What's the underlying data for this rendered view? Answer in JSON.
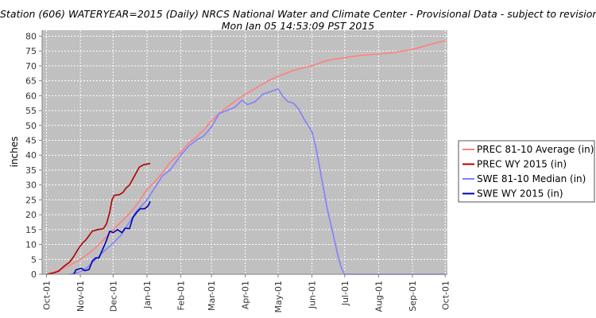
{
  "chart_data": {
    "type": "line",
    "title": "Station (606) WATERYEAR=2015 (Daily) NRCS National Water and Climate Center - Provisional Data - subject to revision",
    "subtitle": "Mon Jan 05 14:53:09 PST 2015",
    "ylabel": "inches",
    "xlabel": "",
    "ylim": [
      0,
      82
    ],
    "yticks": [
      0,
      5,
      10,
      15,
      20,
      25,
      30,
      35,
      40,
      45,
      50,
      55,
      60,
      65,
      70,
      75,
      80
    ],
    "xdomain": [
      "2014-09-27",
      "2015-10-03"
    ],
    "xticks": [
      {
        "date": "2014-10-01",
        "label": "Oct-01"
      },
      {
        "date": "2014-11-01",
        "label": "Nov-01"
      },
      {
        "date": "2014-12-01",
        "label": "Dec-01"
      },
      {
        "date": "2015-01-01",
        "label": "Jan-01"
      },
      {
        "date": "2015-02-01",
        "label": "Feb-01"
      },
      {
        "date": "2015-03-01",
        "label": "Mar-01"
      },
      {
        "date": "2015-04-01",
        "label": "Apr-01"
      },
      {
        "date": "2015-05-01",
        "label": "May-01"
      },
      {
        "date": "2015-06-01",
        "label": "Jun-01"
      },
      {
        "date": "2015-07-01",
        "label": "Jul-01"
      },
      {
        "date": "2015-08-01",
        "label": "Aug-01"
      },
      {
        "date": "2015-09-01",
        "label": "Sep-01"
      },
      {
        "date": "2015-10-01",
        "label": "Oct-01"
      }
    ],
    "grid": true,
    "legend_position": "right",
    "series": [
      {
        "name": "PREC 81-10 Average (in)",
        "color": "#ff8080",
        "points": [
          [
            "2014-10-01",
            0
          ],
          [
            "2014-10-08",
            0.8
          ],
          [
            "2014-10-15",
            1.8
          ],
          [
            "2014-10-22",
            3
          ],
          [
            "2014-11-01",
            5
          ],
          [
            "2014-11-08",
            6.8
          ],
          [
            "2014-11-15",
            9
          ],
          [
            "2014-11-22",
            11.5
          ],
          [
            "2014-12-01",
            15
          ],
          [
            "2014-12-08",
            17.5
          ],
          [
            "2014-12-15",
            20
          ],
          [
            "2014-12-22",
            23
          ],
          [
            "2015-01-01",
            28.5
          ],
          [
            "2015-01-08",
            31
          ],
          [
            "2015-01-15",
            34
          ],
          [
            "2015-01-22",
            37.5
          ],
          [
            "2015-02-01",
            41
          ],
          [
            "2015-02-08",
            44
          ],
          [
            "2015-02-15",
            46
          ],
          [
            "2015-02-22",
            48.5
          ],
          [
            "2015-03-01",
            51.5
          ],
          [
            "2015-03-08",
            54
          ],
          [
            "2015-03-15",
            56
          ],
          [
            "2015-03-22",
            58
          ],
          [
            "2015-04-01",
            60.5
          ],
          [
            "2015-04-08",
            62
          ],
          [
            "2015-04-15",
            63.5
          ],
          [
            "2015-04-22",
            65
          ],
          [
            "2015-05-01",
            66.5
          ],
          [
            "2015-05-08",
            67.5
          ],
          [
            "2015-05-15",
            68.5
          ],
          [
            "2015-05-22",
            69.2
          ],
          [
            "2015-06-01",
            70
          ],
          [
            "2015-06-08",
            71
          ],
          [
            "2015-06-15",
            71.8
          ],
          [
            "2015-06-22",
            72.3
          ],
          [
            "2015-07-01",
            72.8
          ],
          [
            "2015-07-15",
            73.5
          ],
          [
            "2015-08-01",
            74
          ],
          [
            "2015-08-15",
            74.5
          ],
          [
            "2015-09-01",
            75.5
          ],
          [
            "2015-09-15",
            77
          ],
          [
            "2015-10-01",
            78.5
          ]
        ]
      },
      {
        "name": "PREC WY 2015  (in)",
        "color": "#b00000",
        "points": [
          [
            "2014-10-01",
            0
          ],
          [
            "2014-10-08",
            0.5
          ],
          [
            "2014-10-12",
            1
          ],
          [
            "2014-10-15",
            2
          ],
          [
            "2014-10-18",
            3
          ],
          [
            "2014-10-22",
            4
          ],
          [
            "2014-10-26",
            6
          ],
          [
            "2014-10-30",
            8.5
          ],
          [
            "2014-11-03",
            10.5
          ],
          [
            "2014-11-06",
            11.5
          ],
          [
            "2014-11-09",
            13
          ],
          [
            "2014-11-12",
            14.5
          ],
          [
            "2014-11-17",
            15
          ],
          [
            "2014-11-22",
            15.3
          ],
          [
            "2014-11-25",
            17
          ],
          [
            "2014-11-28",
            21
          ],
          [
            "2014-11-30",
            25
          ],
          [
            "2014-12-02",
            26.5
          ],
          [
            "2014-12-07",
            26.8
          ],
          [
            "2014-12-10",
            27.5
          ],
          [
            "2014-12-13",
            29
          ],
          [
            "2014-12-16",
            30
          ],
          [
            "2014-12-19",
            32
          ],
          [
            "2014-12-22",
            34
          ],
          [
            "2014-12-25",
            36
          ],
          [
            "2014-12-29",
            36.8
          ],
          [
            "2015-01-04",
            37.2
          ]
        ]
      },
      {
        "name": "SWE 81-10 Median (in)",
        "color": "#8080ff",
        "points": [
          [
            "2014-10-22",
            0
          ],
          [
            "2014-11-01",
            0.8
          ],
          [
            "2014-11-08",
            2.5
          ],
          [
            "2014-11-15",
            5
          ],
          [
            "2014-11-22",
            7.5
          ],
          [
            "2014-12-01",
            10.5
          ],
          [
            "2014-12-08",
            13
          ],
          [
            "2014-12-15",
            17
          ],
          [
            "2014-12-22",
            21
          ],
          [
            "2015-01-01",
            25
          ],
          [
            "2015-01-08",
            29
          ],
          [
            "2015-01-15",
            33
          ],
          [
            "2015-01-22",
            35
          ],
          [
            "2015-02-01",
            40
          ],
          [
            "2015-02-08",
            43
          ],
          [
            "2015-02-15",
            45
          ],
          [
            "2015-02-22",
            46.5
          ],
          [
            "2015-03-01",
            49.5
          ],
          [
            "2015-03-08",
            54
          ],
          [
            "2015-03-15",
            55
          ],
          [
            "2015-03-22",
            56
          ],
          [
            "2015-03-29",
            58.5
          ],
          [
            "2015-04-03",
            57
          ],
          [
            "2015-04-10",
            58
          ],
          [
            "2015-04-17",
            60.5
          ],
          [
            "2015-04-25",
            61.5
          ],
          [
            "2015-05-01",
            62.3
          ],
          [
            "2015-05-05",
            60
          ],
          [
            "2015-05-10",
            58
          ],
          [
            "2015-05-15",
            57.5
          ],
          [
            "2015-05-20",
            55.5
          ],
          [
            "2015-05-25",
            52
          ],
          [
            "2015-06-01",
            48
          ],
          [
            "2015-06-05",
            42
          ],
          [
            "2015-06-10",
            32
          ],
          [
            "2015-06-15",
            22
          ],
          [
            "2015-06-20",
            14
          ],
          [
            "2015-06-25",
            6
          ],
          [
            "2015-06-28",
            2
          ],
          [
            "2015-07-01",
            0
          ],
          [
            "2015-10-01",
            0
          ]
        ]
      },
      {
        "name": "SWE WY 2015  (in)",
        "color": "#0000b0",
        "points": [
          [
            "2014-10-26",
            0
          ],
          [
            "2014-10-28",
            1.5
          ],
          [
            "2014-11-02",
            2
          ],
          [
            "2014-11-05",
            1.2
          ],
          [
            "2014-11-09",
            1.6
          ],
          [
            "2014-11-12",
            4.5
          ],
          [
            "2014-11-15",
            5.5
          ],
          [
            "2014-11-18",
            5.5
          ],
          [
            "2014-11-21",
            8
          ],
          [
            "2014-11-24",
            10.5
          ],
          [
            "2014-11-28",
            14.5
          ],
          [
            "2014-12-01",
            14
          ],
          [
            "2014-12-05",
            15
          ],
          [
            "2014-12-09",
            14
          ],
          [
            "2014-12-12",
            15.5
          ],
          [
            "2014-12-16",
            15.3
          ],
          [
            "2014-12-19",
            19
          ],
          [
            "2014-12-23",
            21
          ],
          [
            "2014-12-26",
            22
          ],
          [
            "2014-12-30",
            22
          ],
          [
            "2015-01-02",
            23
          ],
          [
            "2015-01-04",
            24.5
          ]
        ]
      }
    ]
  }
}
